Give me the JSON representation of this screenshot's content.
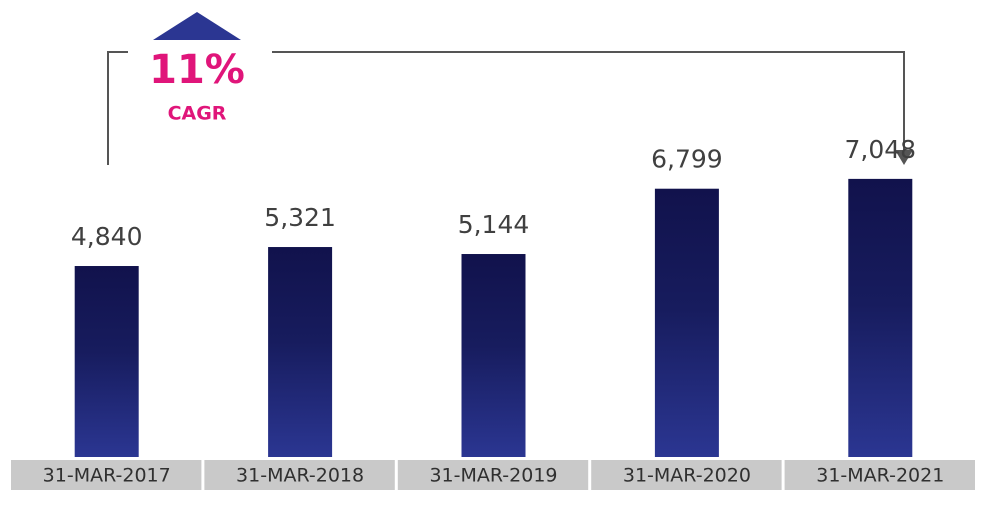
{
  "chart_data": {
    "type": "bar",
    "annotation": {
      "value": "11%",
      "label": "CAGR"
    },
    "categories": [
      "31-MAR-2017",
      "31-MAR-2018",
      "31-MAR-2019",
      "31-MAR-2020",
      "31-MAR-2021"
    ],
    "values": [
      4840,
      5321,
      5144,
      6799,
      7048
    ],
    "value_labels": [
      "4,840",
      "5,321",
      "5,144",
      "6,799",
      "7,048"
    ],
    "color": "#1a1f66"
  }
}
